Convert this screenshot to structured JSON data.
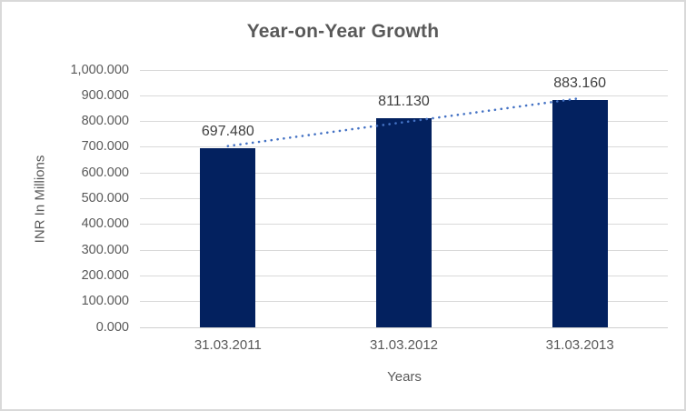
{
  "chart_data": {
    "type": "bar",
    "title": "Year-on-Year Growth",
    "xlabel": "Years",
    "ylabel": "INR In Millions",
    "categories": [
      "31.03.2011",
      "31.03.2012",
      "31.03.2013"
    ],
    "values": [
      697.48,
      811.13,
      883.16
    ],
    "data_labels": [
      "697.480",
      "811.130",
      "883.160"
    ],
    "ylim": [
      0,
      1000
    ],
    "ytick_labels": [
      "0.000",
      "100.000",
      "200.000",
      "300.000",
      "400.000",
      "500.000",
      "600.000",
      "700.000",
      "800.000",
      "900.000",
      "1,000.000"
    ],
    "grid": true,
    "legend": "none",
    "trendline": {
      "type": "linear",
      "style": "dotted"
    }
  },
  "colors": {
    "background": "#FFFFFF",
    "border": "#D9D9D9",
    "bar": "#03215F",
    "trendline": "#4472C4",
    "gridline": "#D9D9D9",
    "axis_line": "#CFCFCF",
    "title_text": "#595959",
    "tick_text": "#595959",
    "data_label_text": "#3F3F3F"
  }
}
